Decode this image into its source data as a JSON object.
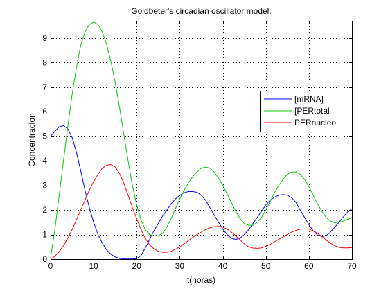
{
  "chart_data": {
    "type": "line",
    "title": "Goldbeter's circadian oscillator model.",
    "xlabel": "t(horas)",
    "ylabel": "Concentracion",
    "xlim": [
      0,
      70
    ],
    "ylim": [
      0,
      9.7
    ],
    "xticks": [
      0,
      10,
      20,
      30,
      40,
      50,
      60,
      70
    ],
    "yticks": [
      0,
      1,
      2,
      3,
      4,
      5,
      6,
      7,
      8,
      9
    ],
    "grid": true,
    "legend_position": "right",
    "series": [
      {
        "name": "[mRNA]",
        "color": "#0000ff",
        "points": [
          [
            0,
            5.0
          ],
          [
            1,
            5.2
          ],
          [
            2,
            5.38
          ],
          [
            3,
            5.43
          ],
          [
            4,
            5.3
          ],
          [
            5,
            4.95
          ],
          [
            6,
            4.35
          ],
          [
            7,
            3.6
          ],
          [
            8,
            2.8
          ],
          [
            9,
            2.1
          ],
          [
            10,
            1.5
          ],
          [
            11,
            1.0
          ],
          [
            12,
            0.65
          ],
          [
            13,
            0.38
          ],
          [
            14,
            0.2
          ],
          [
            15,
            0.09
          ],
          [
            16,
            0.03
          ],
          [
            17,
            0.01
          ],
          [
            18,
            0.005
          ],
          [
            19,
            0.005
          ],
          [
            20,
            0.02
          ],
          [
            21,
            0.15
          ],
          [
            22,
            0.45
          ],
          [
            23,
            0.8
          ],
          [
            24,
            1.15
          ],
          [
            25,
            1.45
          ],
          [
            26,
            1.75
          ],
          [
            27,
            2.0
          ],
          [
            28,
            2.25
          ],
          [
            29,
            2.45
          ],
          [
            30,
            2.6
          ],
          [
            31,
            2.7
          ],
          [
            32,
            2.75
          ],
          [
            33,
            2.75
          ],
          [
            34,
            2.72
          ],
          [
            35,
            2.6
          ],
          [
            36,
            2.4
          ],
          [
            37,
            2.1
          ],
          [
            38,
            1.8
          ],
          [
            39,
            1.5
          ],
          [
            40,
            1.22
          ],
          [
            41,
            1.0
          ],
          [
            42,
            0.85
          ],
          [
            43,
            0.8
          ],
          [
            44,
            0.85
          ],
          [
            45,
            1.0
          ],
          [
            46,
            1.2
          ],
          [
            47,
            1.45
          ],
          [
            48,
            1.7
          ],
          [
            49,
            1.95
          ],
          [
            50,
            2.2
          ],
          [
            51,
            2.4
          ],
          [
            52,
            2.52
          ],
          [
            53,
            2.6
          ],
          [
            54,
            2.63
          ],
          [
            55,
            2.6
          ],
          [
            56,
            2.5
          ],
          [
            57,
            2.3
          ],
          [
            58,
            2.0
          ],
          [
            59,
            1.7
          ],
          [
            60,
            1.4
          ],
          [
            61,
            1.15
          ],
          [
            62,
            0.98
          ],
          [
            63,
            0.92
          ],
          [
            64,
            0.95
          ],
          [
            65,
            1.1
          ],
          [
            66,
            1.3
          ],
          [
            67,
            1.5
          ],
          [
            68,
            1.72
          ],
          [
            69,
            1.92
          ],
          [
            70,
            2.05
          ]
        ]
      },
      {
        "name": "[PERtotal",
        "color": "#00cc00",
        "points": [
          [
            0,
            0.05
          ],
          [
            1,
            1.2
          ],
          [
            2,
            2.6
          ],
          [
            3,
            4.0
          ],
          [
            4,
            5.4
          ],
          [
            5,
            6.7
          ],
          [
            6,
            7.8
          ],
          [
            7,
            8.7
          ],
          [
            8,
            9.25
          ],
          [
            9,
            9.55
          ],
          [
            10,
            9.65
          ],
          [
            11,
            9.55
          ],
          [
            12,
            9.25
          ],
          [
            13,
            8.75
          ],
          [
            14,
            8.05
          ],
          [
            15,
            7.2
          ],
          [
            16,
            6.2
          ],
          [
            17,
            5.1
          ],
          [
            18,
            4.0
          ],
          [
            19,
            3.0
          ],
          [
            20,
            2.2
          ],
          [
            21,
            1.6
          ],
          [
            22,
            1.2
          ],
          [
            23,
            1.0
          ],
          [
            24,
            0.95
          ],
          [
            25,
            0.95
          ],
          [
            26,
            1.05
          ],
          [
            27,
            1.3
          ],
          [
            28,
            1.65
          ],
          [
            29,
            2.05
          ],
          [
            30,
            2.45
          ],
          [
            31,
            2.8
          ],
          [
            32,
            3.1
          ],
          [
            33,
            3.35
          ],
          [
            34,
            3.55
          ],
          [
            35,
            3.7
          ],
          [
            36,
            3.75
          ],
          [
            37,
            3.7
          ],
          [
            38,
            3.55
          ],
          [
            39,
            3.3
          ],
          [
            40,
            3.0
          ],
          [
            41,
            2.65
          ],
          [
            42,
            2.3
          ],
          [
            43,
            1.95
          ],
          [
            44,
            1.65
          ],
          [
            45,
            1.45
          ],
          [
            46,
            1.38
          ],
          [
            47,
            1.38
          ],
          [
            48,
            1.5
          ],
          [
            49,
            1.7
          ],
          [
            50,
            2.0
          ],
          [
            51,
            2.35
          ],
          [
            52,
            2.7
          ],
          [
            53,
            3.0
          ],
          [
            54,
            3.25
          ],
          [
            55,
            3.45
          ],
          [
            56,
            3.55
          ],
          [
            57,
            3.55
          ],
          [
            58,
            3.45
          ],
          [
            59,
            3.25
          ],
          [
            60,
            2.95
          ],
          [
            61,
            2.6
          ],
          [
            62,
            2.25
          ],
          [
            63,
            1.95
          ],
          [
            64,
            1.7
          ],
          [
            65,
            1.55
          ],
          [
            66,
            1.48
          ],
          [
            67,
            1.5
          ],
          [
            68,
            1.55
          ],
          [
            69,
            1.62
          ],
          [
            70,
            1.7
          ]
        ]
      },
      {
        "name": "PERnucleo",
        "color": "#ff0000",
        "points": [
          [
            0,
            0.0
          ],
          [
            1,
            0.12
          ],
          [
            2,
            0.3
          ],
          [
            3,
            0.55
          ],
          [
            4,
            0.85
          ],
          [
            5,
            1.2
          ],
          [
            6,
            1.6
          ],
          [
            7,
            2.0
          ],
          [
            8,
            2.4
          ],
          [
            9,
            2.8
          ],
          [
            10,
            3.15
          ],
          [
            11,
            3.45
          ],
          [
            12,
            3.7
          ],
          [
            13,
            3.82
          ],
          [
            14,
            3.85
          ],
          [
            15,
            3.75
          ],
          [
            16,
            3.5
          ],
          [
            17,
            3.1
          ],
          [
            18,
            2.6
          ],
          [
            19,
            2.1
          ],
          [
            20,
            1.65
          ],
          [
            21,
            1.2
          ],
          [
            22,
            0.85
          ],
          [
            23,
            0.58
          ],
          [
            24,
            0.42
          ],
          [
            25,
            0.32
          ],
          [
            26,
            0.28
          ],
          [
            27,
            0.28
          ],
          [
            28,
            0.32
          ],
          [
            29,
            0.4
          ],
          [
            30,
            0.5
          ],
          [
            31,
            0.62
          ],
          [
            32,
            0.75
          ],
          [
            33,
            0.88
          ],
          [
            34,
            1.0
          ],
          [
            35,
            1.1
          ],
          [
            36,
            1.2
          ],
          [
            37,
            1.27
          ],
          [
            38,
            1.32
          ],
          [
            39,
            1.33
          ],
          [
            40,
            1.3
          ],
          [
            41,
            1.22
          ],
          [
            42,
            1.1
          ],
          [
            43,
            0.95
          ],
          [
            44,
            0.78
          ],
          [
            45,
            0.62
          ],
          [
            46,
            0.5
          ],
          [
            47,
            0.45
          ],
          [
            48,
            0.44
          ],
          [
            49,
            0.46
          ],
          [
            50,
            0.52
          ],
          [
            51,
            0.6
          ],
          [
            52,
            0.7
          ],
          [
            53,
            0.8
          ],
          [
            54,
            0.9
          ],
          [
            55,
            1.0
          ],
          [
            56,
            1.1
          ],
          [
            57,
            1.17
          ],
          [
            58,
            1.22
          ],
          [
            59,
            1.23
          ],
          [
            60,
            1.22
          ],
          [
            61,
            1.15
          ],
          [
            62,
            1.05
          ],
          [
            63,
            0.92
          ],
          [
            64,
            0.78
          ],
          [
            65,
            0.65
          ],
          [
            66,
            0.55
          ],
          [
            67,
            0.48
          ],
          [
            68,
            0.46
          ],
          [
            69,
            0.46
          ],
          [
            70,
            0.47
          ]
        ]
      }
    ]
  }
}
